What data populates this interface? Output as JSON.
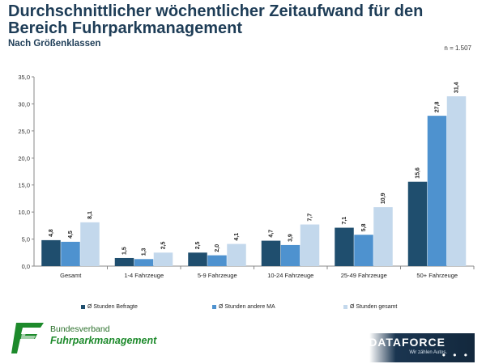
{
  "title": "Durchschnittlicher wöchentlicher Zeitaufwand für den Bereich Fuhrparkmanagement",
  "subtitle": "Nach Größenklassen",
  "n_note": "n = 1.507",
  "chart_data": {
    "type": "bar",
    "title": "Durchschnittlicher wöchentlicher Zeitaufwand für den Bereich Fuhrparkmanagement",
    "subtitle": "Nach Größenklassen",
    "xlabel": "",
    "ylabel": "",
    "ylim": [
      0,
      35
    ],
    "yticks": [
      "0,0",
      "5,0",
      "10,0",
      "15,0",
      "20,0",
      "25,0",
      "30,0",
      "35,0"
    ],
    "grid": false,
    "legend_position": "bottom",
    "categories": [
      "Gesamt",
      "1-4 Fahrzeuge",
      "5-9 Fahrzeuge",
      "10-24 Fahrzeuge",
      "25-49 Fahrzeuge",
      "50+ Fahrzeuge"
    ],
    "series": [
      {
        "name": "Ø Stunden Befragte",
        "color": "#1f4e6e",
        "values": [
          4.8,
          1.5,
          2.5,
          4.7,
          7.1,
          15.6
        ],
        "labels": [
          "4,8",
          "1,5",
          "2,5",
          "4,7",
          "7,1",
          "15,6"
        ]
      },
      {
        "name": "Ø Stunden andere MA",
        "color": "#4e92cf",
        "values": [
          4.5,
          1.3,
          2.0,
          3.9,
          5.8,
          27.8
        ],
        "labels": [
          "4,5",
          "1,3",
          "2,0",
          "3,9",
          "5,8",
          "27,8"
        ]
      },
      {
        "name": "Ø Stunden gesamt",
        "color": "#c3d8ec",
        "values": [
          8.1,
          2.5,
          4.1,
          7.7,
          10.9,
          31.4
        ],
        "labels": [
          "8,1",
          "2,5",
          "4,1",
          "7,7",
          "10,9",
          "31,4"
        ]
      }
    ]
  },
  "logos": {
    "left_line1": "Bundesverband",
    "left_line2": "Fuhrparkmanagement",
    "right_name": "DATAFORCE",
    "right_tagline": "Wir zählen Autos.",
    "right_dots": "• • •"
  },
  "colors": {
    "title": "#1e3d57",
    "axis": "#888888",
    "green": "#1d8a2b",
    "navy": "#13283d"
  }
}
